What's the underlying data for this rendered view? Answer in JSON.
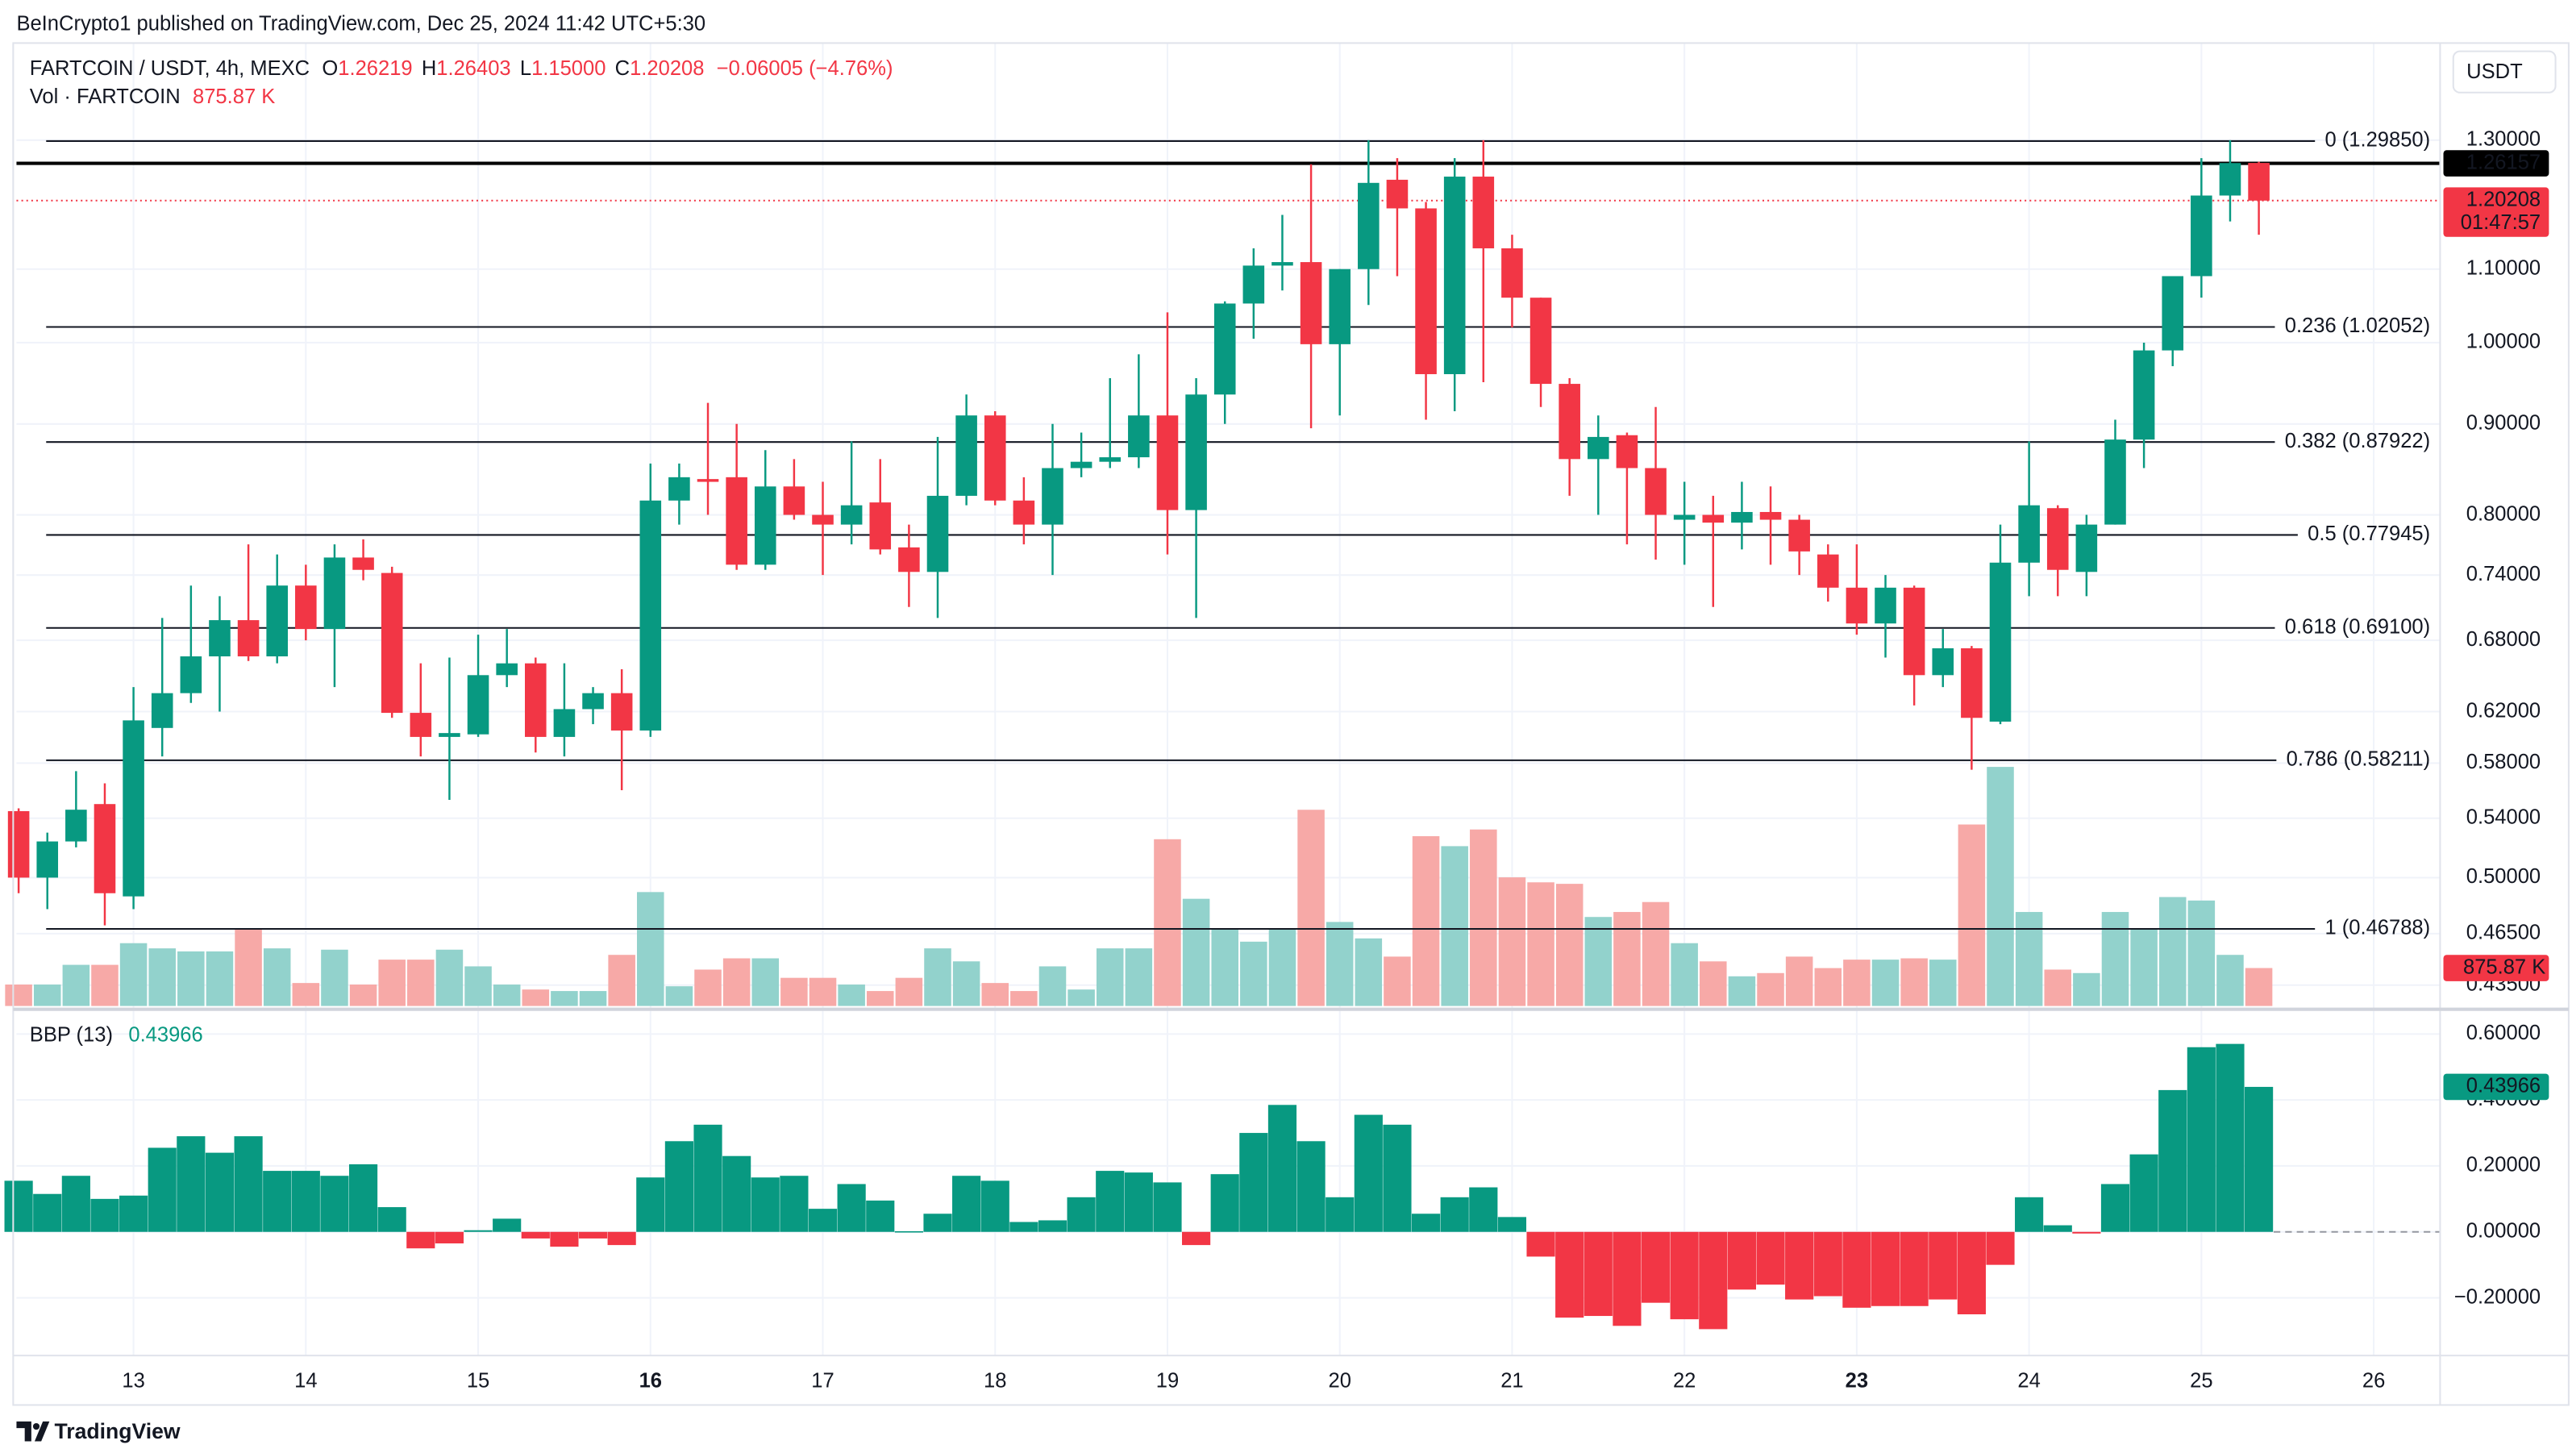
{
  "header": {
    "published": "BeInCrypto1 published on TradingView.com, Dec 25, 2024 11:42 UTC+5:30",
    "symbol": "FARTCOIN / USDT, 4h, MEXC",
    "ohlc": [
      {
        "key": "O",
        "value": "1.26219"
      },
      {
        "key": "H",
        "value": "1.26403"
      },
      {
        "key": "L",
        "value": "1.15000"
      },
      {
        "key": "C",
        "value": "1.20208"
      }
    ],
    "change": "−0.06005 (−4.76%)",
    "volume_label": "Vol · FARTCOIN",
    "volume_value": "875.87 K",
    "currency": "USDT",
    "countdown": "01:47:57"
  },
  "chart_data": [
    {
      "type": "candlestick",
      "log_scale": true,
      "grid": true,
      "up_color": "#089981",
      "down_color": "#f23645",
      "categories": [
        null,
        null,
        null,
        null,
        "13",
        null,
        null,
        null,
        null,
        null,
        "14",
        null,
        null,
        null,
        null,
        null,
        "15",
        null,
        null,
        null,
        null,
        null,
        "16",
        null,
        null,
        null,
        null,
        null,
        "17",
        null,
        null,
        null,
        null,
        null,
        "18",
        null,
        null,
        null,
        null,
        null,
        "19",
        null,
        null,
        null,
        null,
        null,
        "20",
        null,
        null,
        null,
        null,
        null,
        "21",
        null,
        null,
        null,
        null,
        null,
        "22",
        null,
        null,
        null,
        null,
        null,
        "23",
        null,
        null,
        null,
        null,
        null,
        "24",
        null,
        null,
        null,
        null,
        null,
        "25",
        null,
        null,
        null,
        null,
        null,
        "26",
        null,
        null
      ],
      "bold_categories": [
        22,
        64
      ],
      "open": [
        0.545,
        0.5,
        0.524,
        0.55,
        0.488,
        0.607,
        0.635,
        0.666,
        0.698,
        0.666,
        0.73,
        0.69,
        0.757,
        0.742,
        0.619,
        0.6,
        0.602,
        0.65,
        0.66,
        0.6,
        0.622,
        0.635,
        0.605,
        0.815,
        0.838,
        0.84,
        0.75,
        0.83,
        0.8,
        0.79,
        0.813,
        0.767,
        0.743,
        0.82,
        0.91,
        0.815,
        0.79,
        0.85,
        0.857,
        0.862,
        0.91,
        0.805,
        0.935,
        1.052,
        1.105,
        1.11,
        0.998,
        1.1,
        1.235,
        1.19,
        0.96,
        1.24,
        1.13,
        1.06,
        0.948,
        0.86,
        0.887,
        0.85,
        0.795,
        0.8,
        0.792,
        0.803,
        0.795,
        0.76,
        0.728,
        0.695,
        0.728,
        0.65,
        0.673,
        0.612,
        0.752,
        0.807,
        0.743,
        0.79,
        0.882,
        0.99,
        1.09,
        1.21,
        1.26219,
        null,
        null,
        null,
        null,
        null,
        null
      ],
      "high": [
        0.547,
        0.53,
        0.574,
        0.565,
        0.64,
        0.7,
        0.73,
        0.72,
        0.77,
        0.76,
        0.75,
        0.77,
        0.775,
        0.748,
        0.66,
        0.665,
        0.685,
        0.69,
        0.665,
        0.66,
        0.64,
        0.655,
        0.855,
        0.855,
        0.925,
        0.9,
        0.87,
        0.86,
        0.835,
        0.88,
        0.86,
        0.79,
        0.885,
        0.935,
        0.915,
        0.84,
        0.9,
        0.89,
        0.955,
        0.985,
        1.04,
        0.955,
        1.055,
        1.13,
        1.18,
        1.26,
        1.1,
        1.3,
        1.27,
        1.2,
        1.27,
        1.3,
        1.15,
        1.06,
        0.955,
        0.91,
        0.89,
        0.92,
        0.835,
        0.82,
        0.835,
        0.83,
        0.8,
        0.77,
        0.77,
        0.74,
        0.73,
        0.69,
        0.675,
        0.79,
        0.88,
        0.81,
        0.8,
        0.905,
        1.0,
        1.09,
        1.27,
        1.3,
        1.26403,
        null,
        null,
        null,
        null,
        null,
        null
      ],
      "low": [
        0.49,
        0.48,
        0.52,
        0.47,
        0.48,
        0.585,
        0.627,
        0.62,
        0.662,
        0.66,
        0.68,
        0.64,
        0.735,
        0.615,
        0.585,
        0.553,
        0.6,
        0.64,
        0.588,
        0.585,
        0.61,
        0.56,
        0.6,
        0.79,
        0.8,
        0.745,
        0.745,
        0.795,
        0.74,
        0.77,
        0.76,
        0.71,
        0.7,
        0.81,
        0.81,
        0.77,
        0.74,
        0.84,
        0.85,
        0.85,
        0.76,
        0.7,
        0.9,
        1.005,
        1.07,
        0.895,
        0.91,
        1.05,
        1.09,
        0.905,
        0.915,
        0.95,
        1.02,
        0.92,
        0.82,
        0.8,
        0.77,
        0.755,
        0.75,
        0.71,
        0.765,
        0.75,
        0.74,
        0.715,
        0.685,
        0.665,
        0.625,
        0.64,
        0.575,
        0.61,
        0.72,
        0.72,
        0.72,
        0.79,
        0.85,
        0.97,
        1.06,
        1.17,
        1.15,
        null,
        null,
        null,
        null,
        null,
        null
      ],
      "close": [
        0.5,
        0.524,
        0.546,
        0.49,
        0.613,
        0.635,
        0.666,
        0.698,
        0.666,
        0.73,
        0.69,
        0.757,
        0.745,
        0.619,
        0.6,
        0.603,
        0.65,
        0.66,
        0.6,
        0.622,
        0.635,
        0.605,
        0.815,
        0.84,
        0.835,
        0.75,
        0.83,
        0.8,
        0.79,
        0.81,
        0.765,
        0.743,
        0.82,
        0.91,
        0.815,
        0.79,
        0.85,
        0.857,
        0.862,
        0.91,
        0.805,
        0.935,
        1.052,
        1.105,
        1.11,
        0.998,
        1.1,
        1.23,
        1.19,
        0.96,
        1.24,
        1.13,
        1.06,
        0.948,
        0.86,
        0.885,
        0.85,
        0.8,
        0.8,
        0.792,
        0.803,
        0.795,
        0.763,
        0.728,
        0.695,
        0.728,
        0.65,
        0.673,
        0.615,
        0.752,
        0.81,
        0.745,
        0.79,
        0.882,
        0.99,
        1.09,
        1.21,
        1.262,
        1.20208,
        null,
        null,
        null,
        null,
        null,
        null
      ],
      "volume": {
        "up_color": "#92d2cc",
        "down_color": "#f7a9a7",
        "values": [
          495,
          495,
          950,
          950,
          1450,
          1330,
          1260,
          1260,
          1790,
          1330,
          530,
          1300,
          495,
          1070,
          1070,
          1300,
          915,
          495,
          380,
          345,
          345,
          1180,
          2630,
          455,
          840,
          1100,
          1100,
          650,
          650,
          495,
          345,
          650,
          1330,
          1030,
          530,
          345,
          915,
          380,
          1330,
          1330,
          3850,
          2475,
          1790,
          1485,
          1790,
          4530,
          1940,
          1560,
          1140,
          3920,
          3690,
          4075,
          2970,
          2855,
          2820,
          2055,
          2170,
          2400,
          1450,
          1030,
          685,
          760,
          1140,
          875,
          1070,
          1070,
          1100,
          1070,
          4190,
          5520,
          2170,
          840,
          760,
          2170,
          1790,
          2515,
          2435,
          1180,
          875.87,
          null,
          null,
          null,
          null,
          null,
          null
        ]
      },
      "ylim": [
        0.4234,
        1.468
      ],
      "yticks": [
        {
          "value": 1.3,
          "label": "1.30000"
        },
        {
          "value": 1.1,
          "label": "1.10000"
        },
        {
          "value": 1.0,
          "label": "1.00000"
        },
        {
          "value": 0.9,
          "label": "0.90000"
        },
        {
          "value": 0.8,
          "label": "0.80000"
        },
        {
          "value": 0.74,
          "label": "0.74000"
        },
        {
          "value": 0.68,
          "label": "0.68000"
        },
        {
          "value": 0.62,
          "label": "0.62000"
        },
        {
          "value": 0.58,
          "label": "0.58000"
        },
        {
          "value": 0.54,
          "label": "0.54000"
        },
        {
          "value": 0.5,
          "label": "0.50000"
        },
        {
          "value": 0.465,
          "label": "0.46500"
        },
        {
          "value": 0.435,
          "label": "0.43500"
        }
      ],
      "fib_levels": [
        {
          "label": "0 (1.29850)",
          "value": 1.2985
        },
        {
          "label": "0.236 (1.02052)",
          "value": 1.02052
        },
        {
          "label": "0.382 (0.87922)",
          "value": 0.87922
        },
        {
          "label": "0.5 (0.77945)",
          "value": 0.77945
        },
        {
          "label": "0.618 (0.69100)",
          "value": 0.691
        },
        {
          "label": "0.786 (0.58211)",
          "value": 0.58211
        },
        {
          "label": "1 (0.46788)",
          "value": 0.46788
        }
      ],
      "horizontal_line": {
        "value": 1.26157,
        "color": "#000000"
      }
    },
    {
      "type": "bar",
      "title": "BBP (13)",
      "grid": true,
      "pos_color": "#089981",
      "neg_color": "#f23645",
      "values": [
        0.155,
        0.115,
        0.17,
        0.1,
        0.11,
        0.255,
        0.29,
        0.24,
        0.29,
        0.185,
        0.185,
        0.17,
        0.205,
        0.075,
        -0.05,
        -0.035,
        0.005,
        0.04,
        -0.02,
        -0.045,
        -0.02,
        -0.04,
        0.165,
        0.275,
        0.325,
        0.23,
        0.165,
        0.17,
        0.07,
        0.145,
        0.095,
        0.002,
        0.055,
        0.17,
        0.155,
        0.03,
        0.035,
        0.105,
        0.185,
        0.18,
        0.15,
        -0.04,
        0.175,
        0.3,
        0.385,
        0.275,
        0.105,
        0.355,
        0.325,
        0.055,
        0.105,
        0.135,
        0.045,
        -0.075,
        -0.26,
        -0.255,
        -0.285,
        -0.215,
        -0.265,
        -0.295,
        -0.175,
        -0.16,
        -0.205,
        -0.195,
        -0.23,
        -0.225,
        -0.225,
        -0.205,
        -0.25,
        -0.1,
        0.105,
        0.02,
        -0.005,
        0.145,
        0.235,
        0.43,
        0.56,
        0.57,
        0.43966,
        null,
        null,
        null,
        null,
        null,
        null
      ],
      "ylim": [
        -0.375,
        0.66
      ],
      "yticks": [
        {
          "value": 0.6,
          "label": "0.60000"
        },
        {
          "value": 0.4,
          "label": "0.40000"
        },
        {
          "value": 0.2,
          "label": "0.20000"
        },
        {
          "value": 0,
          "label": "0.00000"
        },
        {
          "value": -0.2,
          "label": "−0.20000"
        }
      ]
    }
  ],
  "footer": {
    "brand": "TradingView"
  }
}
